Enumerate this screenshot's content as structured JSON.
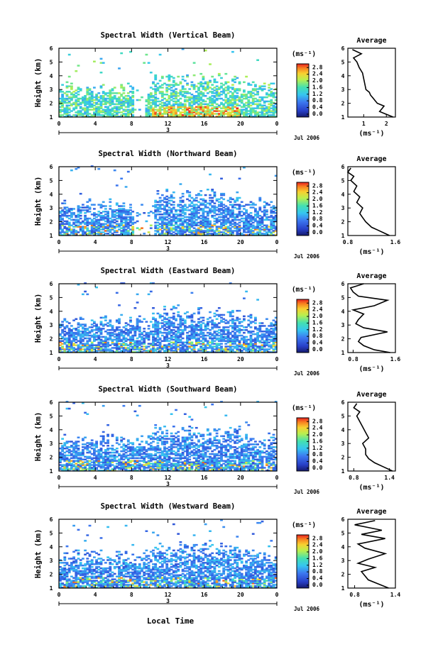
{
  "shared": {
    "y_label": "Height (km)",
    "y_ticks": [
      "1",
      "2",
      "3",
      "4",
      "5",
      "6"
    ],
    "x_ticks": [
      "0",
      "4",
      "8",
      "12",
      "16",
      "20",
      "0"
    ],
    "day_label": "3",
    "date_label": "Jul 2006",
    "x_label": "Local Time",
    "colorbar_unit_html": "(ms⁻¹)",
    "avg_title": "Average",
    "avg_unit": "(ms⁻¹)"
  },
  "chart_data": [
    {
      "type": "heatmap",
      "title": "Spectral Width (Vertical Beam)",
      "xlim": [
        0,
        24
      ],
      "ylim": [
        1,
        6
      ],
      "colorbar_ticks": [
        "2.8",
        "2.4",
        "2.0",
        "1.6",
        "1.2",
        "0.8",
        "0.4",
        "0.0"
      ],
      "average_profile": {
        "x_ticks": [
          "1",
          "2"
        ],
        "xlim": [
          0.3,
          2.4
        ],
        "heights": [
          1.0,
          1.2,
          1.4,
          1.6,
          1.8,
          2.0,
          2.2,
          2.4,
          2.6,
          2.8,
          3.0,
          3.4,
          3.8,
          4.2,
          4.6,
          5.0,
          5.3,
          5.6,
          5.9
        ],
        "values": [
          2.3,
          2.0,
          1.7,
          1.8,
          1.9,
          1.6,
          1.5,
          1.4,
          1.3,
          1.25,
          1.1,
          1.05,
          1.0,
          0.95,
          0.8,
          0.7,
          0.55,
          0.9,
          0.5
        ]
      }
    },
    {
      "type": "heatmap",
      "title": "Spectral Width (Northward Beam)",
      "xlim": [
        0,
        24
      ],
      "ylim": [
        1,
        6
      ],
      "colorbar_ticks": [
        "2.8",
        "2.4",
        "2.0",
        "1.6",
        "1.2",
        "0.8",
        "0.4",
        "0.0"
      ],
      "average_profile": {
        "x_ticks": [
          "0.8",
          "1.6"
        ],
        "xlim": [
          0.8,
          1.6
        ],
        "heights": [
          1.0,
          1.2,
          1.4,
          1.6,
          1.8,
          2.0,
          2.3,
          2.6,
          3.0,
          3.4,
          3.8,
          4.2,
          4.6,
          5.0,
          5.3,
          5.6,
          5.9
        ],
        "values": [
          1.5,
          1.4,
          1.3,
          1.2,
          1.15,
          1.1,
          1.05,
          1.0,
          1.05,
          0.95,
          1.0,
          0.9,
          0.95,
          0.85,
          0.9,
          0.8,
          0.85
        ]
      }
    },
    {
      "type": "heatmap",
      "title": "Spectral Width (Eastward Beam)",
      "xlim": [
        0,
        24
      ],
      "ylim": [
        1,
        6
      ],
      "colorbar_ticks": [
        "2.8",
        "2.4",
        "2.0",
        "1.6",
        "1.2",
        "0.8",
        "0.4",
        "0.0"
      ],
      "average_profile": {
        "x_ticks": [
          "0.8",
          "1.6"
        ],
        "xlim": [
          0.7,
          1.6
        ],
        "heights": [
          1.0,
          1.2,
          1.5,
          1.8,
          2.1,
          2.5,
          2.8,
          3.1,
          3.4,
          3.8,
          4.1,
          4.4,
          4.8,
          5.1,
          5.4,
          5.7,
          6.0
        ],
        "values": [
          1.5,
          1.2,
          1.0,
          0.9,
          0.95,
          1.45,
          1.0,
          0.85,
          0.9,
          1.0,
          0.8,
          1.2,
          1.45,
          0.9,
          0.8,
          0.75,
          1.0
        ]
      }
    },
    {
      "type": "heatmap",
      "title": "Spectral Width (Southward Beam)",
      "xlim": [
        0,
        24
      ],
      "ylim": [
        1,
        6
      ],
      "colorbar_ticks": [
        "2.8",
        "2.4",
        "2.0",
        "1.6",
        "1.2",
        "0.8",
        "0.4",
        "0.0"
      ],
      "average_profile": {
        "x_ticks": [
          "0.8",
          "1.4"
        ],
        "xlim": [
          0.7,
          1.5
        ],
        "heights": [
          1.0,
          1.3,
          1.6,
          1.9,
          2.2,
          2.6,
          3.0,
          3.4,
          3.8,
          4.2,
          4.6,
          5.0,
          5.3,
          5.6,
          5.9
        ],
        "values": [
          1.45,
          1.3,
          1.15,
          1.05,
          1.0,
          1.0,
          0.95,
          1.05,
          1.0,
          0.95,
          0.9,
          0.85,
          0.9,
          0.8,
          0.85
        ]
      }
    },
    {
      "type": "heatmap",
      "title": "Spectral Width (Westward Beam)",
      "xlim": [
        0,
        24
      ],
      "ylim": [
        1,
        6
      ],
      "colorbar_ticks": [
        "2.8",
        "2.4",
        "2.0",
        "1.6",
        "1.2",
        "0.8",
        "0.4",
        "0.0"
      ],
      "average_profile": {
        "x_ticks": [
          "0.8",
          "1.4"
        ],
        "xlim": [
          0.7,
          1.4
        ],
        "heights": [
          1.0,
          1.3,
          1.6,
          1.9,
          2.2,
          2.5,
          2.8,
          3.1,
          3.5,
          3.9,
          4.2,
          4.6,
          4.9,
          5.2,
          5.6,
          5.9
        ],
        "values": [
          1.3,
          1.15,
          1.0,
          0.95,
          0.9,
          1.1,
          0.85,
          1.0,
          1.25,
          0.95,
          0.85,
          1.25,
          0.9,
          1.2,
          0.8,
          1.1
        ]
      }
    }
  ]
}
